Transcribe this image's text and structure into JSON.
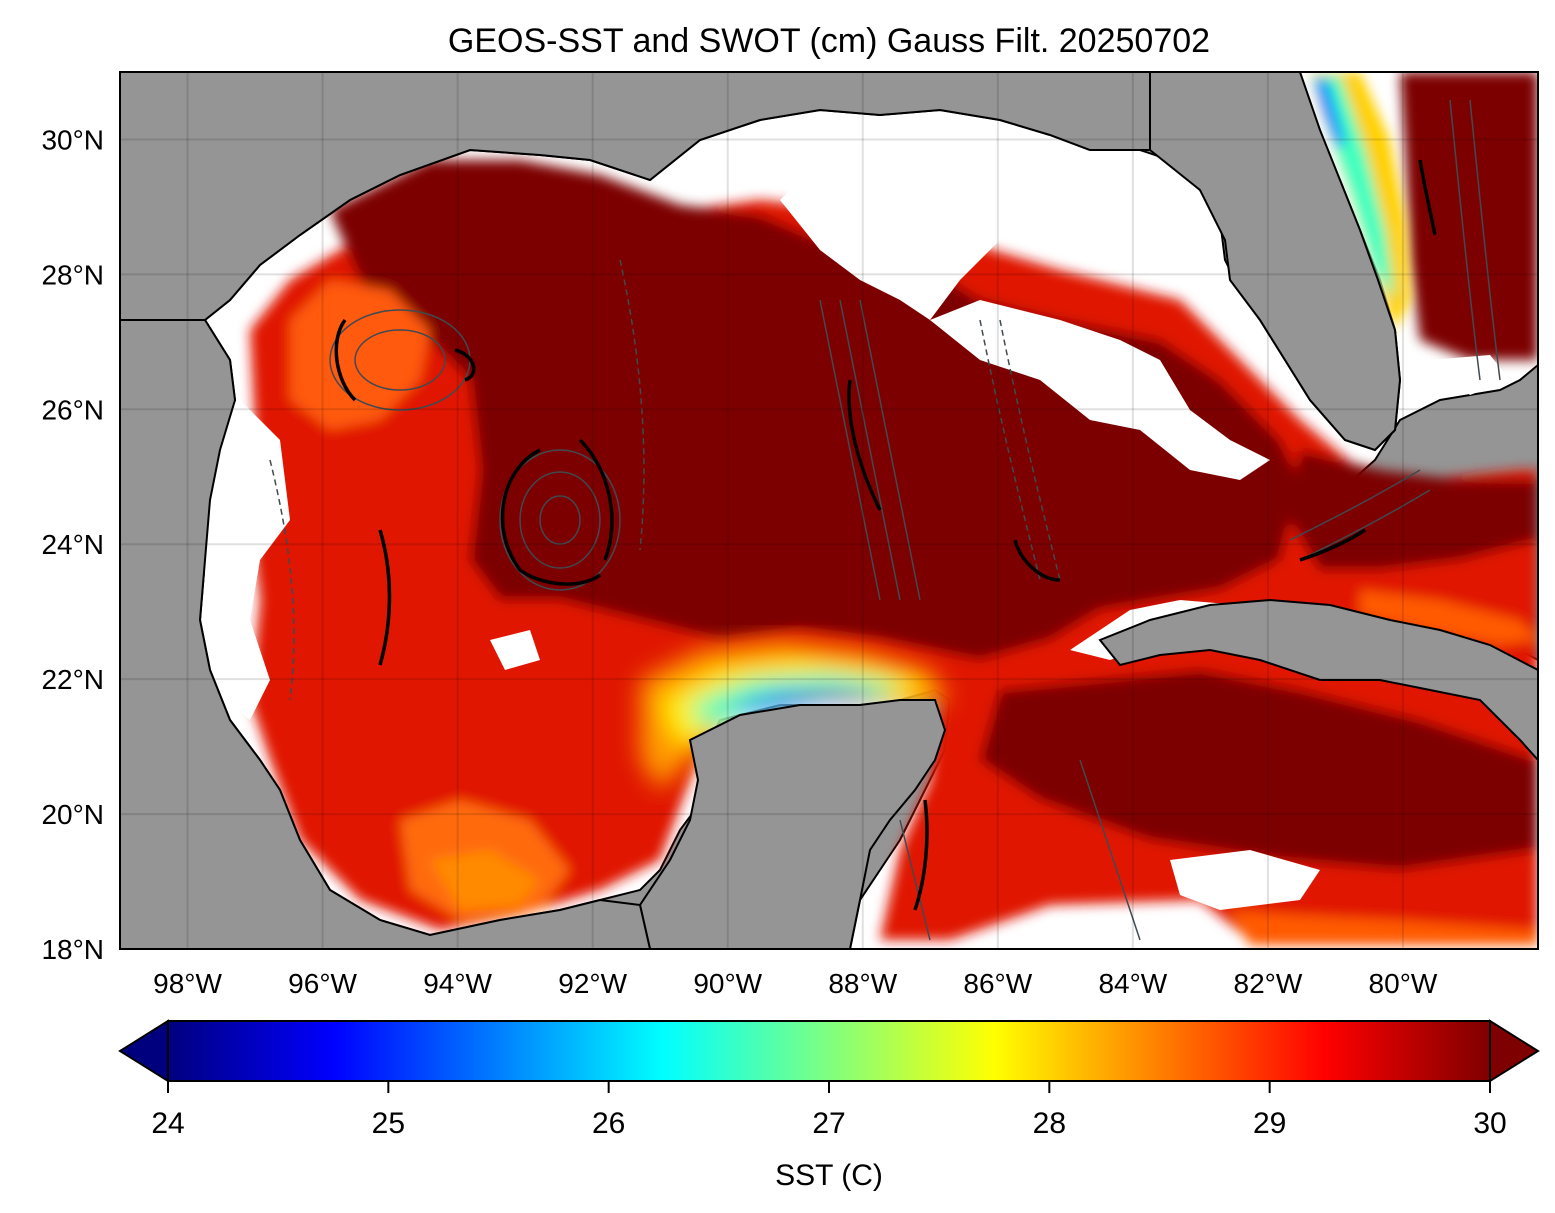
{
  "map": {
    "title": "GEOS-SST  and SWOT (cm) Gauss Filt. 20250702",
    "lon_range": [
      -99.0,
      -78.0
    ],
    "lat_range": [
      18.0,
      31.0
    ],
    "lon_ticks": [
      {
        "value": -98,
        "label": "98°W"
      },
      {
        "value": -96,
        "label": "96°W"
      },
      {
        "value": -94,
        "label": "94°W"
      },
      {
        "value": -92,
        "label": "92°W"
      },
      {
        "value": -90,
        "label": "90°W"
      },
      {
        "value": -88,
        "label": "88°W"
      },
      {
        "value": -86,
        "label": "86°W"
      },
      {
        "value": -84,
        "label": "84°W"
      },
      {
        "value": -82,
        "label": "82°W"
      },
      {
        "value": -80,
        "label": "80°W"
      }
    ],
    "lat_ticks": [
      {
        "value": 18,
        "label": "18°N"
      },
      {
        "value": 20,
        "label": "20°N"
      },
      {
        "value": 22,
        "label": "22°N"
      },
      {
        "value": 24,
        "label": "24°N"
      },
      {
        "value": 26,
        "label": "26°N"
      },
      {
        "value": 28,
        "label": "28°N"
      },
      {
        "value": 30,
        "label": "30°N"
      }
    ],
    "land_color": "#959595",
    "no_data_color": "#ffffff",
    "grid": true
  },
  "colorbar": {
    "label": "SST (C)",
    "range": [
      24,
      30
    ],
    "extend": "both",
    "colormap": "jet",
    "ticks": [
      {
        "value": 24,
        "label": "24"
      },
      {
        "value": 25,
        "label": "25"
      },
      {
        "value": 26,
        "label": "26"
      },
      {
        "value": 27,
        "label": "27"
      },
      {
        "value": 28,
        "label": "28"
      },
      {
        "value": 29,
        "label": "29"
      },
      {
        "value": 30,
        "label": "30"
      }
    ],
    "stops": [
      "#00007f",
      "#0000ff",
      "#007fff",
      "#00ffff",
      "#7fff7f",
      "#ffff00",
      "#ff7f00",
      "#ff0000",
      "#7f0000"
    ]
  }
}
